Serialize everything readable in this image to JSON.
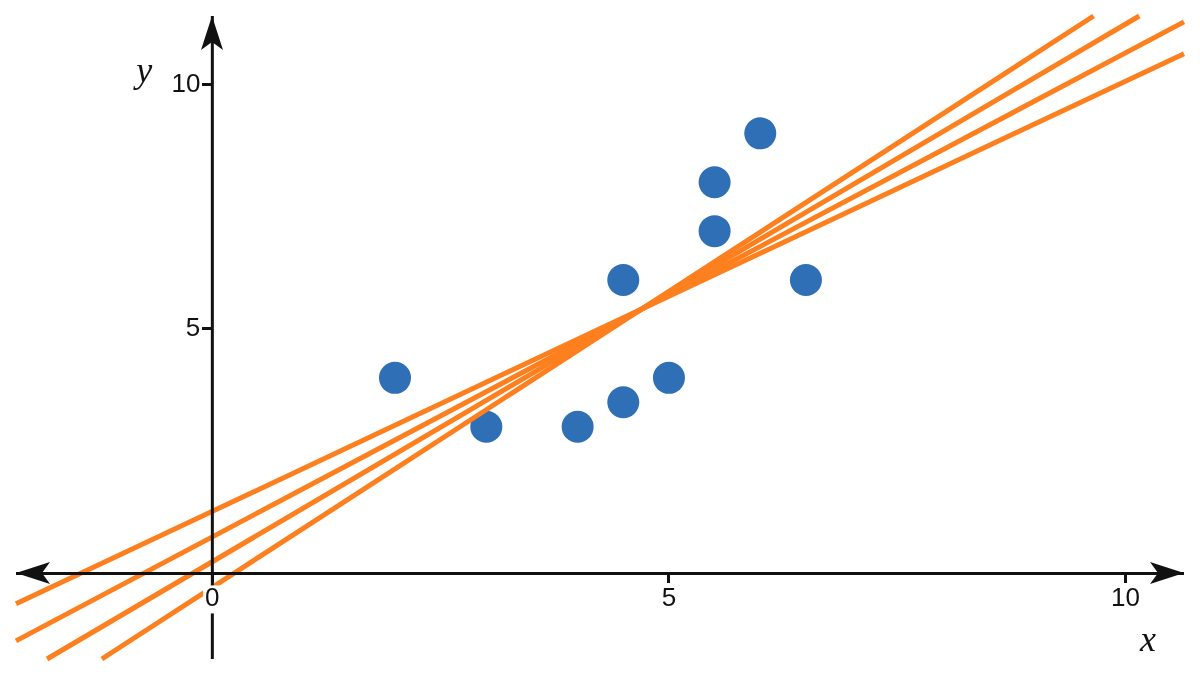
{
  "chart_data": {
    "type": "scatter",
    "xlabel": "x",
    "ylabel": "y",
    "xlim": [
      -2.15,
      10.64
    ],
    "ylim": [
      -1.75,
      11.4
    ],
    "xticks": [
      0,
      5,
      10
    ],
    "yticks": [
      5,
      10
    ],
    "grid": false,
    "legend": false,
    "marker": "circle",
    "series": [
      {
        "color": "#2e6fb5",
        "x": [
          2,
          3,
          4,
          4.5,
          4.5,
          5,
          5.5,
          5.5,
          6,
          6.5
        ],
        "values": [
          4,
          3,
          3,
          3.5,
          6,
          4,
          7,
          8,
          9,
          6
        ]
      },
      {
        "type": "line",
        "color": "#fd7f1e",
        "marker": "none",
        "x": [
          -2.15,
          10.64
        ],
        "values": [
          -0.62,
          10.63
        ]
      },
      {
        "type": "line",
        "color": "#fd7f1e",
        "marker": "none",
        "x": [
          -2.15,
          10.64
        ],
        "values": [
          -1.38,
          11.28
        ]
      },
      {
        "type": "line",
        "color": "#fd7f1e",
        "marker": "none",
        "x": [
          -1.81,
          10.15
        ],
        "values": [
          -1.75,
          11.4
        ]
      },
      {
        "type": "line",
        "color": "#fd7f1e",
        "marker": "none",
        "x": [
          -1.21,
          9.65
        ],
        "values": [
          -1.75,
          11.4
        ]
      }
    ]
  }
}
